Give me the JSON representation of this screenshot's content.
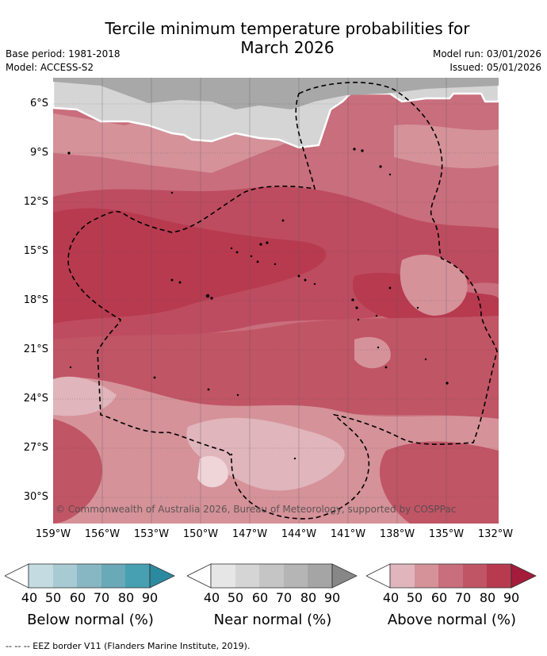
{
  "title_line1": "Tercile minimum temperature probabilities for",
  "title_line2": "March 2026",
  "base_period": "Base period: 1981-2018",
  "model": "Model: ACCESS-S2",
  "model_run": "Model run: 03/01/2026",
  "issued": "Issued: 05/01/2026",
  "lat_labels": [
    "6°S",
    "9°S",
    "12°S",
    "15°S",
    "18°S",
    "21°S",
    "24°S",
    "27°S",
    "30°S"
  ],
  "lon_labels": [
    "159°W",
    "156°W",
    "153°W",
    "150°W",
    "147°W",
    "144°W",
    "141°W",
    "138°W",
    "135°W",
    "132°W"
  ],
  "copyright": "© Commonwealth of Australia 2026, Bureau of Meteorology, supported by COSPPac",
  "colorbars": [
    {
      "title": "Below normal (%)",
      "ticks": [
        "40",
        "50",
        "60",
        "70",
        "80",
        "90"
      ],
      "colors": [
        "#ffffff",
        "#c4dbe1",
        "#a7cad3",
        "#88b7c4",
        "#6aa9b8",
        "#47a0b1",
        "#2c8aa0"
      ]
    },
    {
      "title": "Near normal (%)",
      "ticks": [
        "40",
        "50",
        "60",
        "70",
        "80",
        "90"
      ],
      "colors": [
        "#ffffff",
        "#e6e6e6",
        "#d5d5d5",
        "#c5c5c5",
        "#b5b5b5",
        "#a5a5a5",
        "#878787"
      ]
    },
    {
      "title": "Above normal (%)",
      "ticks": [
        "40",
        "50",
        "60",
        "70",
        "80",
        "90"
      ],
      "colors": [
        "#ffffff",
        "#e0b5bc",
        "#d59299",
        "#c96e7c",
        "#c05566",
        "#b83a4f",
        "#a51c3a"
      ]
    }
  ],
  "footer": "--  --  -- EEZ border V11 (Flanders Marine Institute, 2019)."
}
